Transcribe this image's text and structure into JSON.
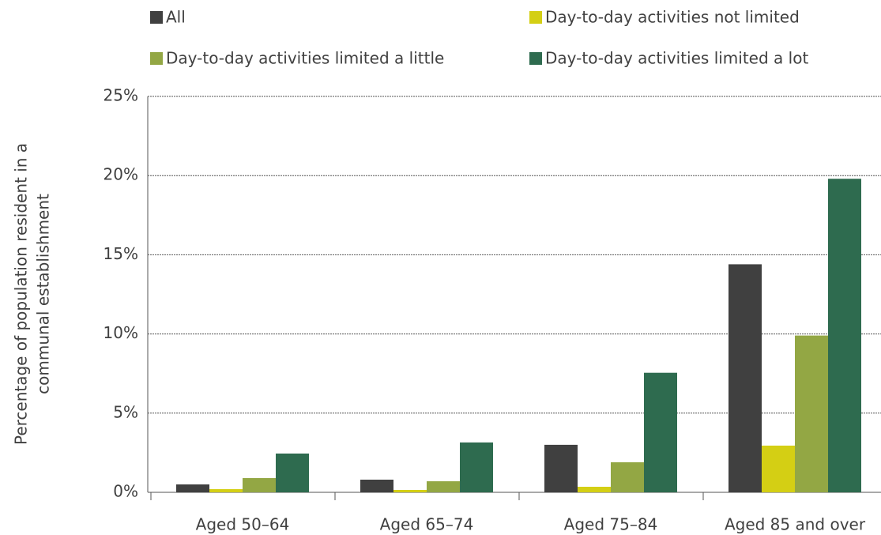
{
  "chart_data": {
    "type": "bar",
    "y_label": [
      "Percentage of population resident in a",
      "communal establishment"
    ],
    "categories": [
      "Aged 50–64",
      "Aged 65–74",
      "Aged 75–84",
      "Aged 85 and over"
    ],
    "series": [
      {
        "name": "All",
        "color": "#404040",
        "values": [
          0.5,
          0.8,
          3.0,
          14.4
        ]
      },
      {
        "name": "Day-to-day activities not limited",
        "color": "#d4cf14",
        "values": [
          0.2,
          0.15,
          0.35,
          2.95
        ]
      },
      {
        "name": "Day-to-day activities limited a little",
        "color": "#93a744",
        "values": [
          0.9,
          0.7,
          1.9,
          9.9
        ]
      },
      {
        "name": "Day-to-day activities limited a lot",
        "color": "#2e6b4f",
        "values": [
          2.45,
          3.15,
          7.55,
          19.8
        ]
      }
    ],
    "ylim": [
      0,
      25
    ],
    "yticks": [
      {
        "value": 0,
        "label": "0%"
      },
      {
        "value": 5,
        "label": "5%"
      },
      {
        "value": 10,
        "label": "10%"
      },
      {
        "value": 15,
        "label": "15%"
      },
      {
        "value": 20,
        "label": "20%"
      },
      {
        "value": 25,
        "label": "25%"
      }
    ],
    "grid": true
  }
}
